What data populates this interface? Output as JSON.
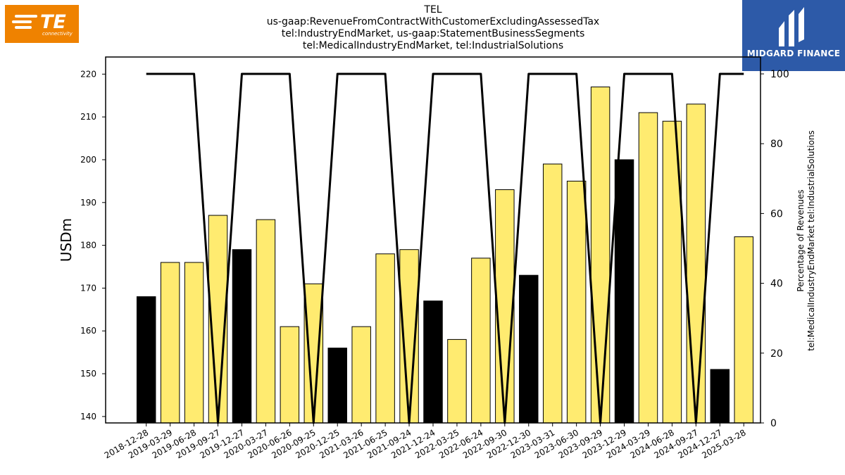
{
  "title_lines": [
    "TEL",
    "us-gaap:RevenueFromContractWithCustomerExcludingAssessedTax",
    "tel:IndustryEndMarket, us-gaap:StatementBusinessSegments",
    "tel:MedicalIndustryEndMarket, tel:IndustrialSolutions"
  ],
  "logos": {
    "left": {
      "text": "TE",
      "sub": "connectivity",
      "color": "#ef8200"
    },
    "right": {
      "text": "MIDGARD FINANCE",
      "color": "#2d5aa8"
    }
  },
  "chart_data": {
    "type": "bar",
    "categories": [
      "2018-12-28",
      "2019-03-29",
      "2019-06-28",
      "2019-09-27",
      "2019-12-27",
      "2020-03-27",
      "2020-06-26",
      "2020-09-25",
      "2020-12-25",
      "2021-03-26",
      "2021-06-25",
      "2021-09-24",
      "2021-12-24",
      "2022-03-25",
      "2022-06-24",
      "2022-09-30",
      "2022-12-30",
      "2023-03-31",
      "2023-06-30",
      "2023-09-29",
      "2023-12-29",
      "2024-03-29",
      "2024-06-28",
      "2024-09-27",
      "2024-12-27",
      "2025-03-28"
    ],
    "series": [
      {
        "type": "bar",
        "axis": "left",
        "values": [
          168,
          176,
          176,
          187,
          179,
          186,
          161,
          171,
          156,
          161,
          178,
          179,
          167,
          158,
          177,
          193,
          173,
          199,
          195,
          217,
          200,
          211,
          209,
          213,
          151,
          182
        ],
        "colors": [
          "#000000",
          "#ffeb70",
          "#ffeb70",
          "#ffeb70",
          "#000000",
          "#ffeb70",
          "#ffeb70",
          "#ffeb70",
          "#000000",
          "#ffeb70",
          "#ffeb70",
          "#ffeb70",
          "#000000",
          "#ffeb70",
          "#ffeb70",
          "#ffeb70",
          "#000000",
          "#ffeb70",
          "#ffeb70",
          "#ffeb70",
          "#000000",
          "#ffeb70",
          "#ffeb70",
          "#ffeb70",
          "#000000",
          "#ffeb70"
        ]
      },
      {
        "type": "line",
        "axis": "right",
        "color": "#000000",
        "values": [
          100,
          100,
          100,
          0,
          100,
          100,
          100,
          0,
          100,
          100,
          100,
          0,
          100,
          100,
          100,
          0,
          100,
          100,
          100,
          0,
          100,
          100,
          100,
          0,
          100,
          100
        ]
      }
    ],
    "ylabel": "USDm",
    "ylim": [
      138.5,
      224
    ],
    "yticks": [
      140,
      150,
      160,
      170,
      180,
      190,
      200,
      210,
      220
    ],
    "y2label_lines": [
      "Percentage of Revenues",
      "tel:MedicalIndustryEndMarket tel:IndustrialSolutions"
    ],
    "y2lim": [
      0,
      100
    ],
    "y2ticks": [
      0,
      20,
      40,
      60,
      80,
      100
    ],
    "grid": false,
    "legend": "none"
  }
}
